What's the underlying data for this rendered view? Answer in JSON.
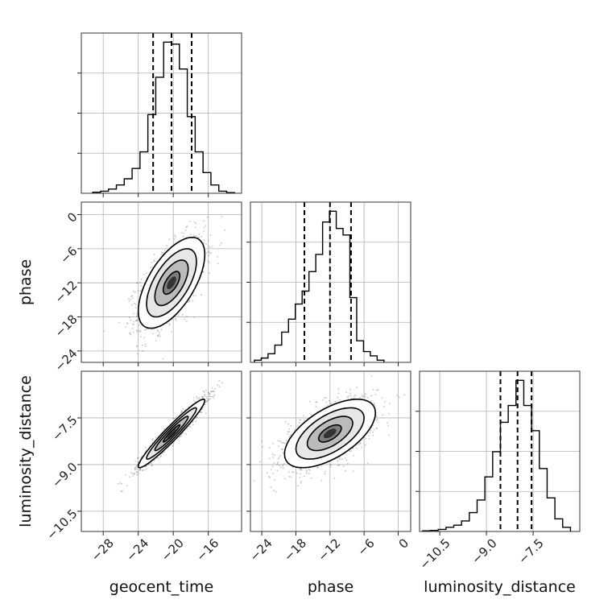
{
  "chart_data": {
    "type": "corner",
    "parameters": [
      "geocent_time",
      "phase",
      "luminosity_distance"
    ],
    "axis_labels": {
      "x": [
        "geocent_time",
        "phase",
        "luminosity_distance"
      ],
      "y": [
        "",
        "phase",
        "luminosity_distance"
      ]
    },
    "grid": true,
    "ranges": {
      "geocent_time": [
        -30.5,
        -12.2
      ],
      "phase": [
        -26.0,
        2.2
      ],
      "luminosity_distance": [
        -11.15,
        -6.0
      ]
    },
    "ticks": {
      "geocent_time": [
        -28,
        -24,
        -20,
        -16
      ],
      "phase": [
        -24,
        -18,
        -12,
        -6,
        0
      ],
      "luminosity_distance": [
        -10.5,
        -9.0,
        -7.5
      ]
    },
    "tick_labels": {
      "geocent_time": [
        "−28",
        "−24",
        "−20",
        "−16"
      ],
      "phase": [
        "−24",
        "−18",
        "−12",
        "−6",
        "0"
      ],
      "luminosity_distance": [
        "−10.5",
        "−9.0",
        "−7.5"
      ]
    },
    "quantiles": {
      "geocent_time": [
        -22.3,
        -20.2,
        -17.9
      ],
      "phase": [
        -16.5,
        -12.0,
        -8.3
      ],
      "luminosity_distance": [
        -8.55,
        -8.0,
        -7.55
      ]
    },
    "histograms": {
      "geocent_time": {
        "bin_edges": [
          -29.2,
          -28.3,
          -27.4,
          -26.5,
          -25.6,
          -24.7,
          -23.8,
          -22.9,
          -22.0,
          -21.1,
          -20.2,
          -19.3,
          -18.4,
          -17.5,
          -16.6,
          -15.7,
          -14.8,
          -13.9,
          -13.0
        ],
        "counts": [
          0.5,
          1,
          2,
          4,
          7,
          12,
          20,
          38,
          56,
          73,
          72,
          60,
          37,
          20,
          10,
          4,
          1,
          0.3
        ]
      },
      "phase": {
        "bin_edges": [
          -25.3,
          -24.1,
          -22.9,
          -21.7,
          -20.5,
          -19.3,
          -18.1,
          -16.9,
          -15.7,
          -14.5,
          -13.3,
          -12.1,
          -10.9,
          -9.7,
          -8.5,
          -7.3,
          -6.1,
          -4.9,
          -3.7,
          -2.5
        ],
        "counts": [
          1,
          2,
          4,
          8,
          14,
          20,
          27,
          33,
          42,
          50,
          65,
          70,
          62,
          59,
          30,
          10,
          5,
          3,
          1
        ]
      },
      "luminosity_distance": {
        "bin_edges": [
          -11.05,
          -10.8,
          -10.55,
          -10.3,
          -10.05,
          -9.8,
          -9.55,
          -9.3,
          -9.05,
          -8.8,
          -8.55,
          -8.3,
          -8.05,
          -7.8,
          -7.55,
          -7.3,
          -7.05,
          -6.8,
          -6.55,
          -6.3
        ],
        "counts": [
          0.3,
          0.5,
          1,
          2,
          3,
          5,
          9,
          15,
          26,
          38,
          52,
          60,
          72,
          60,
          48,
          30,
          16,
          6,
          2
        ]
      }
    },
    "pairs": [
      {
        "x": "geocent_time",
        "y": "phase",
        "mean": [
          -20.2,
          -12.0
        ],
        "std": [
          1.9,
          4.0
        ],
        "corr": 0.62
      },
      {
        "x": "geocent_time",
        "y": "luminosity_distance",
        "mean": [
          -20.2,
          -8.0
        ],
        "std": [
          1.9,
          0.55
        ],
        "corr": 0.96
      },
      {
        "x": "phase",
        "y": "luminosity_distance",
        "mean": [
          -12.0,
          -8.0
        ],
        "std": [
          4.0,
          0.55
        ],
        "corr": 0.6
      }
    ],
    "contour_levels_sigma": [
      0.5,
      1.0,
      1.5,
      2.0
    ]
  }
}
